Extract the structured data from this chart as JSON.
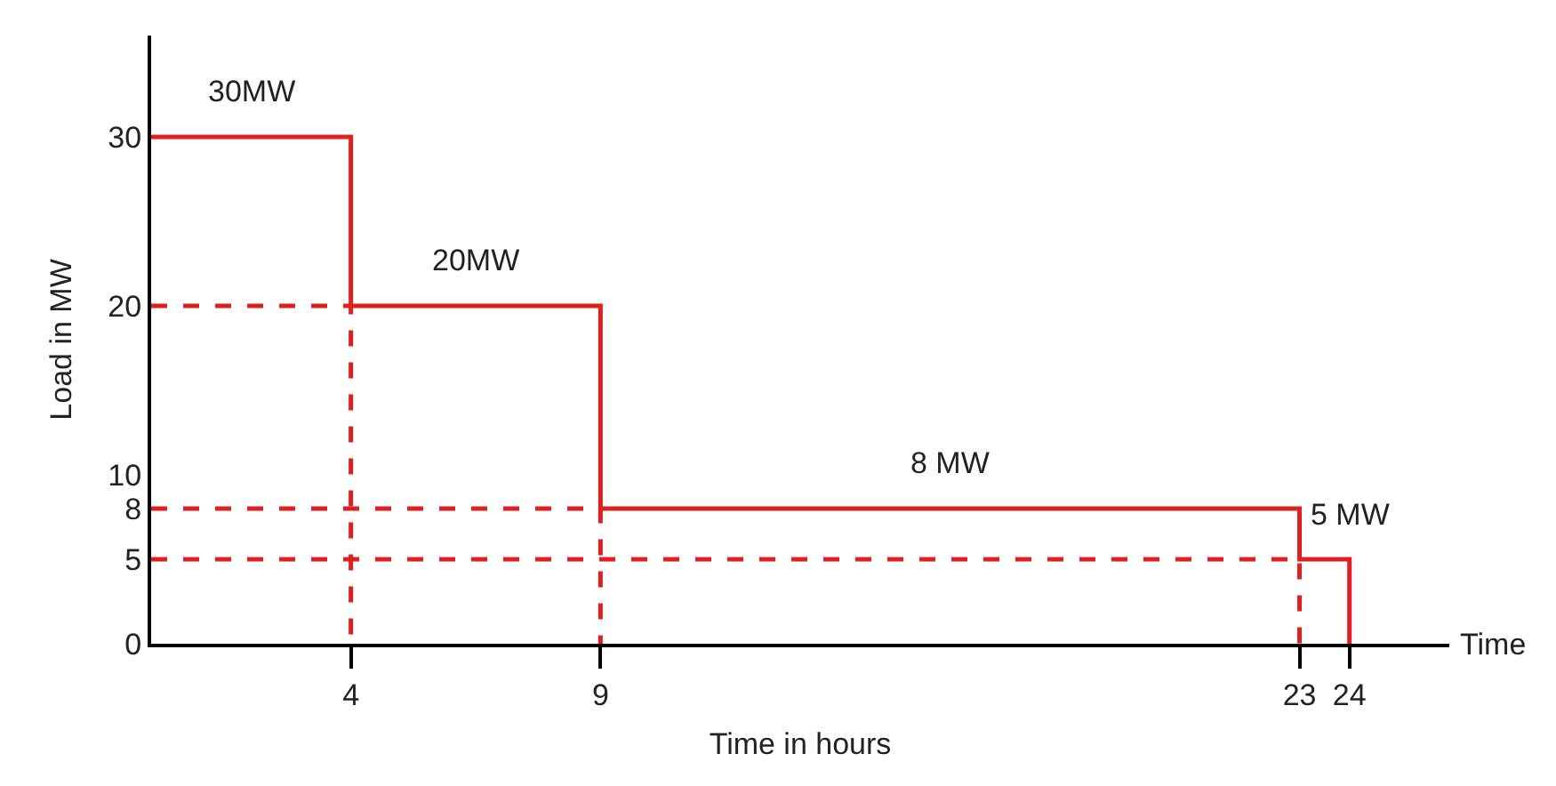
{
  "chart_data": {
    "type": "line",
    "xlabel": "Time in hours",
    "ylabel": "Load in MW",
    "xlim": [
      0,
      26
    ],
    "xticks": [
      4,
      9,
      23,
      24
    ],
    "ylim": [
      0,
      36
    ],
    "yticks": [
      0,
      5,
      8,
      10,
      20,
      30
    ],
    "grid": false,
    "marker": "none",
    "series": [
      {
        "color": "#e02020",
        "line_style": "solid",
        "x": [
          0,
          4,
          4,
          9,
          9,
          23,
          23,
          24,
          24
        ],
        "values": [
          30,
          30,
          20,
          20,
          8,
          8,
          5,
          5,
          0
        ]
      },
      {
        "color": "#e02020",
        "line_style": "dashed",
        "x": [
          0,
          4,
          4
        ],
        "values": [
          20,
          20,
          0
        ]
      },
      {
        "color": "#e02020",
        "line_style": "dashed",
        "x": [
          0,
          9,
          9
        ],
        "values": [
          8,
          8,
          0
        ]
      },
      {
        "color": "#e02020",
        "line_style": "dashed",
        "x": [
          0,
          23,
          23
        ],
        "values": [
          5,
          5,
          0
        ]
      }
    ],
    "annotations": [
      {
        "text": "30MW",
        "x": 2,
        "y": 30
      },
      {
        "text": "20MW",
        "x": 6.5,
        "y": 20
      },
      {
        "text": "8 MW",
        "x": 16,
        "y": 8
      },
      {
        "text": "5 MW",
        "x": 24,
        "y": 5
      },
      "Time"
    ]
  }
}
